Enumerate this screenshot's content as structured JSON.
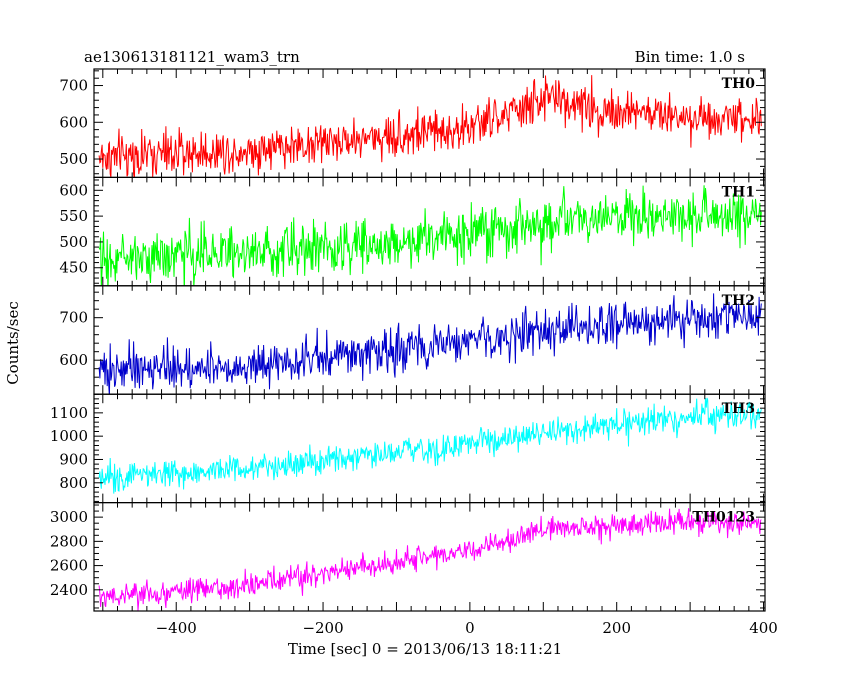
{
  "chart_data": {
    "type": "line",
    "title_left": "ae130613181121_wam3_trn",
    "title_right": "Bin time: 1.0 s",
    "xlabel": "Time [sec] 0 = 2013/06/13 18:11:21",
    "ylabel": "Counts/sec",
    "xlim": [
      -512,
      402
    ],
    "x_ticks": [
      -400,
      -200,
      0,
      200,
      400
    ],
    "x_tick_labels": [
      "−400",
      "−200",
      "0",
      "200",
      "400"
    ],
    "x_range": [
      -505,
      397
    ],
    "bin_time": 1.0,
    "grid": false,
    "panels": [
      {
        "name": "TH0",
        "color": "#ff0000",
        "ylim": [
          450,
          745
        ],
        "y_ticks": [
          500,
          600,
          700
        ],
        "y_minor_step": 20,
        "trend_x": [
          -505,
          -300,
          -100,
          0,
          50,
          110,
          150,
          200,
          300,
          397
        ],
        "trend_y": [
          505,
          525,
          565,
          585,
          620,
          670,
          645,
          630,
          615,
          615
        ],
        "noise_sd": 30
      },
      {
        "name": "TH1",
        "color": "#00ff00",
        "ylim": [
          415,
          625
        ],
        "y_ticks": [
          450,
          500,
          550,
          600
        ],
        "y_minor_step": 10,
        "trend_x": [
          -505,
          -300,
          -100,
          0,
          100,
          200,
          300,
          397
        ],
        "trend_y": [
          465,
          482,
          500,
          515,
          535,
          545,
          550,
          555
        ],
        "noise_sd": 25
      },
      {
        "name": "TH2",
        "color": "#0000cc",
        "ylim": [
          520,
          775
        ],
        "y_ticks": [
          600,
          700
        ],
        "y_minor_step": 20,
        "trend_x": [
          -505,
          -300,
          -100,
          0,
          100,
          200,
          300,
          397
        ],
        "trend_y": [
          575,
          590,
          625,
          645,
          665,
          680,
          695,
          705
        ],
        "noise_sd": 25
      },
      {
        "name": "TH3",
        "color": "#00ffff",
        "ylim": [
          715,
          1180
        ],
        "y_ticks": [
          800,
          900,
          1000,
          1100
        ],
        "y_minor_step": 20,
        "trend_x": [
          -505,
          -300,
          -100,
          0,
          100,
          200,
          300,
          397
        ],
        "trend_y": [
          830,
          860,
          920,
          970,
          1010,
          1050,
          1080,
          1095
        ],
        "noise_sd": 30
      },
      {
        "name": "TH0123",
        "color": "#ff00ff",
        "ylim": [
          2225,
          3120
        ],
        "y_ticks": [
          2400,
          2600,
          2800,
          3000
        ],
        "y_minor_step": 50,
        "trend_x": [
          -505,
          -400,
          -300,
          -200,
          -100,
          0,
          50,
          100,
          200,
          300,
          397
        ],
        "trend_y": [
          2340,
          2380,
          2430,
          2530,
          2640,
          2720,
          2800,
          2900,
          2930,
          2960,
          2965
        ],
        "noise_sd": 50
      }
    ]
  }
}
